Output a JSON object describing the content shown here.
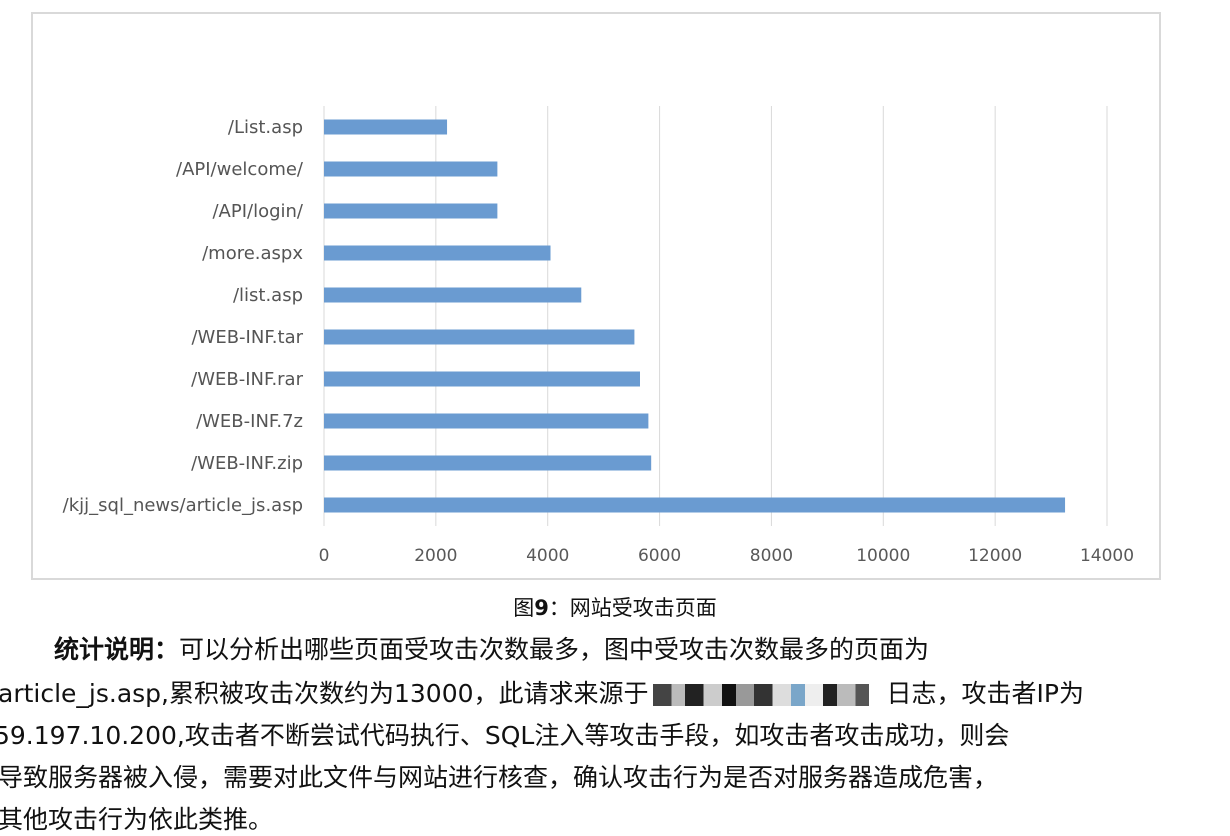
{
  "chart_data": {
    "type": "bar",
    "orientation": "horizontal",
    "categories": [
      "/List.asp",
      "/API/welcome/",
      "/API/login/",
      "/more.aspx",
      "/list.asp",
      "/WEB-INF.tar",
      "/WEB-INF.rar",
      "/WEB-INF.7z",
      "/WEB-INF.zip",
      "/kjj_sql_news/article_js.asp"
    ],
    "values": [
      2200,
      3100,
      3100,
      4050,
      4600,
      5550,
      5650,
      5800,
      5850,
      13250
    ],
    "xlim": [
      0,
      14000
    ],
    "xticks": [
      "0",
      "2000",
      "4000",
      "6000",
      "8000",
      "10000",
      "12000",
      "14000"
    ],
    "grid": "vertical",
    "bar_color": "#6a9bd1",
    "legend": "none"
  },
  "caption": {
    "prefix": "图",
    "number": "9",
    "text": "：网站受攻击页面"
  },
  "paragraph": {
    "lead": "统计说明：",
    "line1": "可以分析出哪些页面受攻击次数最多，图中受攻击次数最多的页面为",
    "line2_before": "article_js.asp,累积被攻击次数约为13000，此请求来源于",
    "line2_after": "日志，攻击者IP为",
    "line3": "59.197.10.200,攻击者不断尝试代码执行、SQL注入等攻击手段，如攻击者攻击成功，则会",
    "line4": "导致服务器被入侵，需要对此文件与网站进行核查，确认攻击行为是否对服务器造成危害，",
    "line5": "其他攻击行为依此类推。"
  }
}
